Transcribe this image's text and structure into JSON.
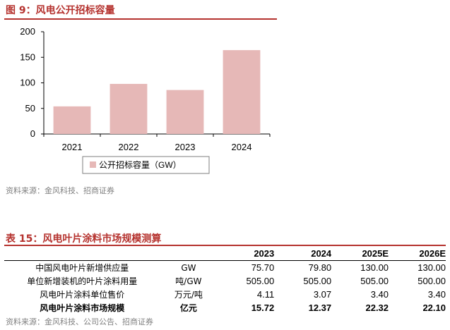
{
  "figure": {
    "title": "图 9：风电公开招标容量",
    "source": "资料来源：金风科技、招商证券"
  },
  "chart_data": {
    "type": "bar",
    "categories": [
      "2021",
      "2022",
      "2023",
      "2024"
    ],
    "series": [
      {
        "name": "公开招标容量（GW）",
        "values": [
          54,
          98,
          86,
          164
        ]
      }
    ],
    "y_ticks": [
      "0",
      "50",
      "100",
      "150",
      "200"
    ],
    "ylim": [
      0,
      200
    ],
    "grid": false,
    "legend_position": "bottom",
    "bar_color": "#e6b8b7"
  },
  "table": {
    "title": "表 15：风电叶片涂料市场规模测算",
    "headers": [
      "",
      "",
      "2023",
      "2024",
      "2025E",
      "2026E"
    ],
    "rows": [
      {
        "label": "中国风电叶片新增供应量",
        "unit": "GW",
        "values": [
          "75.70",
          "79.80",
          "130.00",
          "130.00"
        ]
      },
      {
        "label": "单位新增装机的叶片涂料用量",
        "unit": "吨/GW",
        "values": [
          "505.00",
          "505.00",
          "505.00",
          "500.00"
        ]
      },
      {
        "label": "风电叶片涂料单位售价",
        "unit": "万元/吨",
        "values": [
          "4.11",
          "3.07",
          "3.40",
          "3.40"
        ]
      },
      {
        "label": "风电叶片涂料市场规模",
        "unit": "亿元",
        "values": [
          "15.72",
          "12.37",
          "22.32",
          "22.10"
        ]
      }
    ],
    "source": "资料来源：金风科技、公司公告、招商证券"
  }
}
